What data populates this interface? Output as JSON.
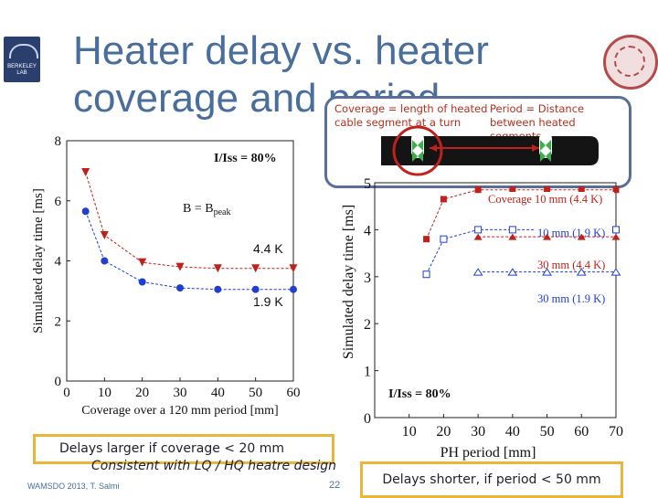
{
  "slide": {
    "title_line1": "Heater delay vs. heater",
    "title_line2": "coverage and period",
    "logo_text": "BERKELEY LAB",
    "inset_coverage_text": "Coverage = length of heated cable segment at a turn",
    "inset_period_text": "Period = Distance between heated segments",
    "note_left_1": "Delays larger if coverage < 20 mm",
    "note_left_2": "Consistent with LQ / HQ heatre design",
    "note_right": "Delays shorter, if period < 50 mm",
    "footer_left": "WAMSDO 2013, T. Salmi",
    "slide_number": "22"
  },
  "colors": {
    "title": "#4a6e9c",
    "red_series": "#c0211b",
    "blue_series": "#1f3fd1",
    "annotation_box": "#e8b63a",
    "inset_border": "#5a6f97"
  },
  "chart_data": [
    {
      "type": "line",
      "xlabel": "Coverage over a 120 mm period [mm]",
      "ylabel": "Simulated delay time [ms]",
      "xlim": [
        0,
        60
      ],
      "ylim": [
        0,
        8
      ],
      "xticks": [
        0,
        10,
        20,
        30,
        40,
        50,
        60
      ],
      "yticks": [
        0,
        2,
        4,
        6,
        8
      ],
      "annotations": {
        "condition": "I/Iss = 80%",
        "field_main": "B = B",
        "field_sub": "peak",
        "label_44K": "4.4 K",
        "label_19K": "1.9 K"
      },
      "series": [
        {
          "name": "4.4 K",
          "marker": "triangle-down",
          "x": [
            5,
            10,
            20,
            30,
            40,
            50,
            60
          ],
          "y": [
            6.95,
            4.85,
            3.95,
            3.8,
            3.75,
            3.75,
            3.75
          ]
        },
        {
          "name": "1.9 K",
          "marker": "circle",
          "x": [
            5,
            10,
            20,
            30,
            40,
            50,
            60
          ],
          "y": [
            5.65,
            4.0,
            3.3,
            3.1,
            3.05,
            3.05,
            3.05
          ]
        }
      ]
    },
    {
      "type": "line",
      "xlabel": "PH period [mm]",
      "ylabel": "Simulated delay time [ms]",
      "xlim": [
        0,
        70
      ],
      "ylim": [
        0,
        5
      ],
      "xticks": [
        10,
        20,
        30,
        40,
        50,
        60,
        70
      ],
      "yticks": [
        0,
        1,
        2,
        3,
        4,
        5
      ],
      "annotations": {
        "condition": "I/Iss = 80%"
      },
      "series": [
        {
          "name": "Coverage 10 mm (4.4 K)",
          "marker": "square-filled",
          "x": [
            15,
            20,
            30,
            40,
            50,
            60,
            70
          ],
          "y": [
            3.8,
            4.65,
            4.85,
            4.85,
            4.85,
            4.85,
            4.85
          ]
        },
        {
          "name": "10 mm (1.9 K)",
          "marker": "square-open",
          "x": [
            15,
            20,
            30,
            40,
            50,
            60,
            70
          ],
          "y": [
            3.05,
            3.8,
            4.0,
            4.0,
            4.0,
            4.0,
            4.0
          ]
        },
        {
          "name": "30 mm (4.4 K)",
          "marker": "triangle-filled",
          "x": [
            30,
            40,
            50,
            60,
            70
          ],
          "y": [
            3.85,
            3.85,
            3.85,
            3.85,
            3.85
          ]
        },
        {
          "name": "30 mm (1.9 K)",
          "marker": "triangle-open",
          "x": [
            30,
            40,
            50,
            60,
            70
          ],
          "y": [
            3.1,
            3.1,
            3.1,
            3.1,
            3.1
          ]
        }
      ]
    }
  ]
}
